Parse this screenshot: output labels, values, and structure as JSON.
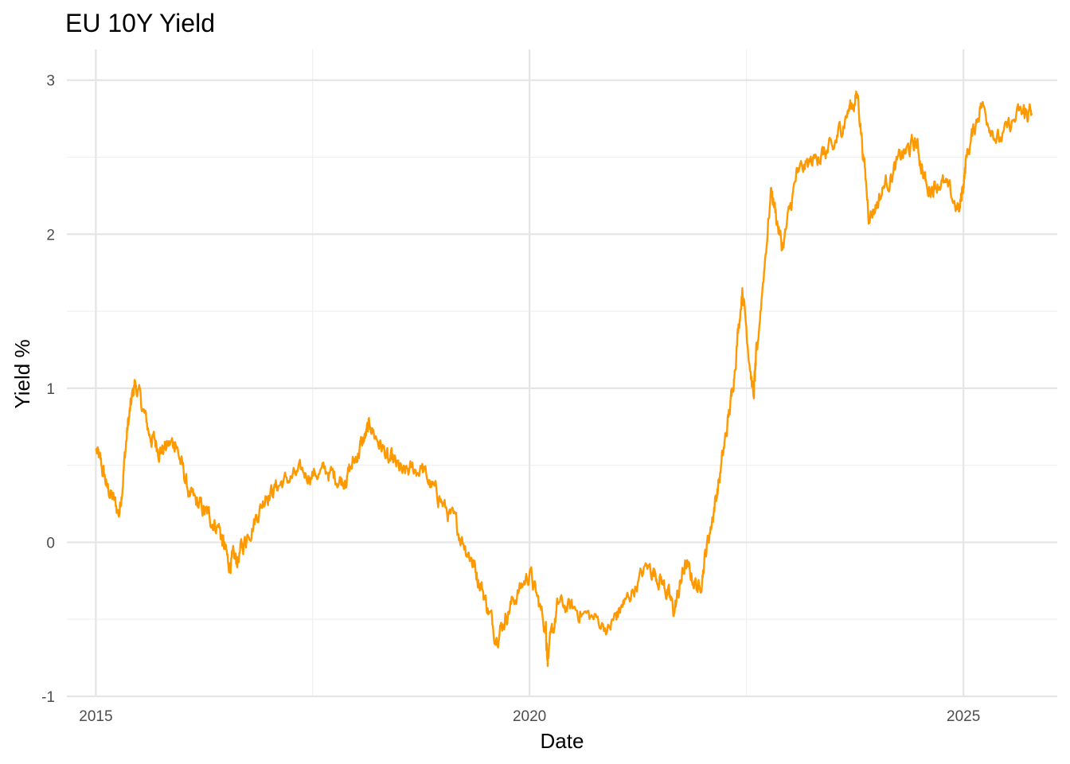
{
  "chart_data": {
    "type": "line",
    "title": "EU 10Y Yield",
    "xlabel": "Date",
    "ylabel": "Yield %",
    "x_tick_labels": [
      "2015",
      "2020",
      "2025"
    ],
    "y_tick_labels": [
      "-1",
      "0",
      "1",
      "2",
      "3"
    ],
    "y_ticks": [
      -1,
      0,
      1,
      2,
      3
    ],
    "ylim": [
      -1,
      3.2
    ],
    "xlim": [
      "2014-09-01",
      "2026-01-31"
    ],
    "x_ticks": [
      "2015-01-01",
      "2020-01-01",
      "2025-01-01"
    ],
    "grid": true,
    "legend": "none",
    "colors": {
      "line": "#ff9900",
      "grid_major": "#e5e5e5",
      "grid_minor": "#efefef",
      "background": "#ffffff"
    },
    "series": [
      {
        "x": [
          "2015-01-02",
          "2015-02-15",
          "2015-04-10",
          "2015-05-15",
          "2015-06-15",
          "2015-08-15",
          "2015-10-01",
          "2015-12-01",
          "2016-02-01",
          "2016-04-01",
          "2016-06-01",
          "2016-07-10",
          "2016-08-15",
          "2016-10-01",
          "2016-12-15",
          "2017-03-01",
          "2017-06-01",
          "2017-09-01",
          "2017-11-15",
          "2018-01-15",
          "2018-03-01",
          "2018-05-15",
          "2018-07-15",
          "2018-10-01",
          "2018-12-15",
          "2019-03-01",
          "2019-05-01",
          "2019-06-15",
          "2019-08-15",
          "2019-10-15",
          "2020-01-01",
          "2020-03-09",
          "2020-03-18",
          "2020-05-01",
          "2020-08-01",
          "2020-12-01",
          "2021-02-01",
          "2021-05-15",
          "2021-07-15",
          "2021-09-01",
          "2021-10-15",
          "2021-12-15",
          "2022-02-01",
          "2022-03-15",
          "2022-05-01",
          "2022-06-15",
          "2022-08-01",
          "2022-08-15",
          "2022-10-15",
          "2022-12-01",
          "2023-02-01",
          "2023-05-01",
          "2023-07-01",
          "2023-09-01",
          "2023-10-15",
          "2023-12-01",
          "2024-02-01",
          "2024-04-15",
          "2024-06-15",
          "2024-08-01",
          "2024-10-01",
          "2024-12-15",
          "2025-01-15",
          "2025-03-15",
          "2025-06-01",
          "2025-09-01",
          "2025-10-15"
        ],
        "y": [
          0.6,
          0.38,
          0.18,
          0.75,
          1.05,
          0.7,
          0.6,
          0.65,
          0.3,
          0.2,
          0.1,
          -0.12,
          -0.12,
          0.05,
          0.3,
          0.4,
          0.45,
          0.45,
          0.4,
          0.6,
          0.75,
          0.55,
          0.45,
          0.48,
          0.28,
          0.1,
          -0.1,
          -0.3,
          -0.62,
          -0.4,
          -0.2,
          -0.55,
          -0.75,
          -0.4,
          -0.45,
          -0.55,
          -0.4,
          -0.15,
          -0.25,
          -0.45,
          -0.15,
          -0.3,
          0.1,
          0.45,
          0.95,
          1.65,
          0.95,
          1.25,
          2.3,
          1.9,
          2.4,
          2.5,
          2.55,
          2.8,
          2.9,
          2.1,
          2.3,
          2.5,
          2.6,
          2.3,
          2.35,
          2.15,
          2.5,
          2.85,
          2.6,
          2.8,
          2.78
        ]
      }
    ]
  }
}
